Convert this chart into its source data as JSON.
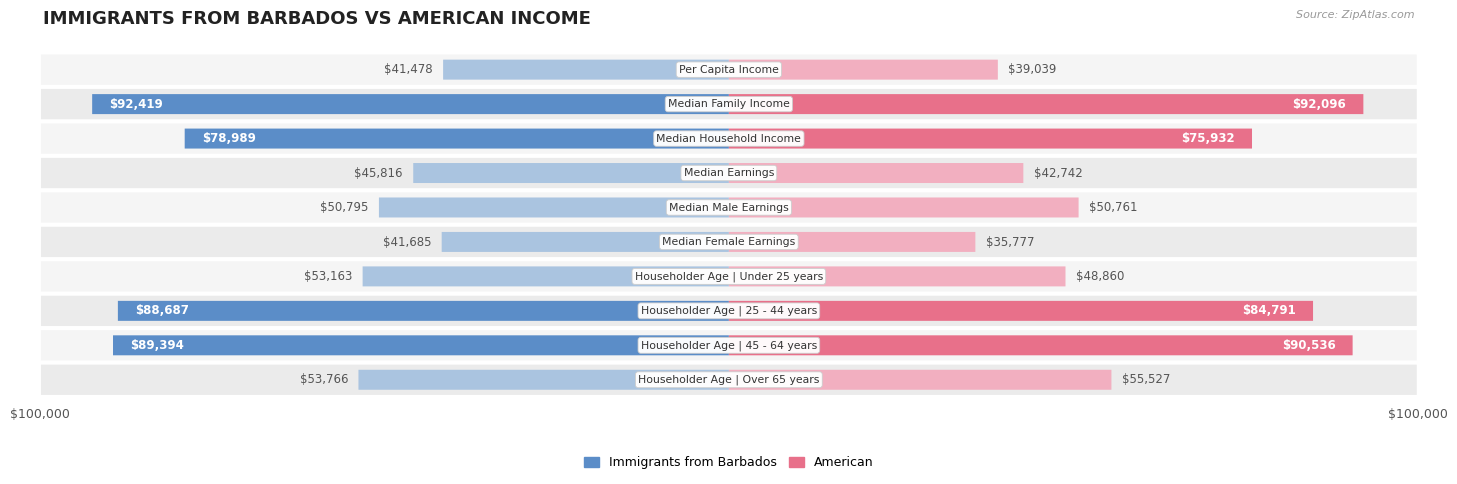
{
  "title": "IMMIGRANTS FROM BARBADOS VS AMERICAN INCOME",
  "source": "Source: ZipAtlas.com",
  "categories": [
    "Per Capita Income",
    "Median Family Income",
    "Median Household Income",
    "Median Earnings",
    "Median Male Earnings",
    "Median Female Earnings",
    "Householder Age | Under 25 years",
    "Householder Age | 25 - 44 years",
    "Householder Age | 45 - 64 years",
    "Householder Age | Over 65 years"
  ],
  "barbados_values": [
    41478,
    92419,
    78989,
    45816,
    50795,
    41685,
    53163,
    88687,
    89394,
    53766
  ],
  "american_values": [
    39039,
    92096,
    75932,
    42742,
    50761,
    35777,
    48860,
    84791,
    90536,
    55527
  ],
  "max_value": 100000,
  "barbados_color_dark": "#5b8dc8",
  "barbados_color_light": "#aac4e0",
  "american_color_dark": "#e8708a",
  "american_color_light": "#f2afc0",
  "row_bg_even": "#f5f5f5",
  "row_bg_odd": "#ebebeb",
  "title_fontsize": 13,
  "axis_fontsize": 9,
  "bar_label_fontsize": 8.5,
  "category_fontsize": 7.8,
  "legend_fontsize": 9,
  "source_fontsize": 8,
  "barbados_threshold": 70000,
  "american_threshold": 70000
}
